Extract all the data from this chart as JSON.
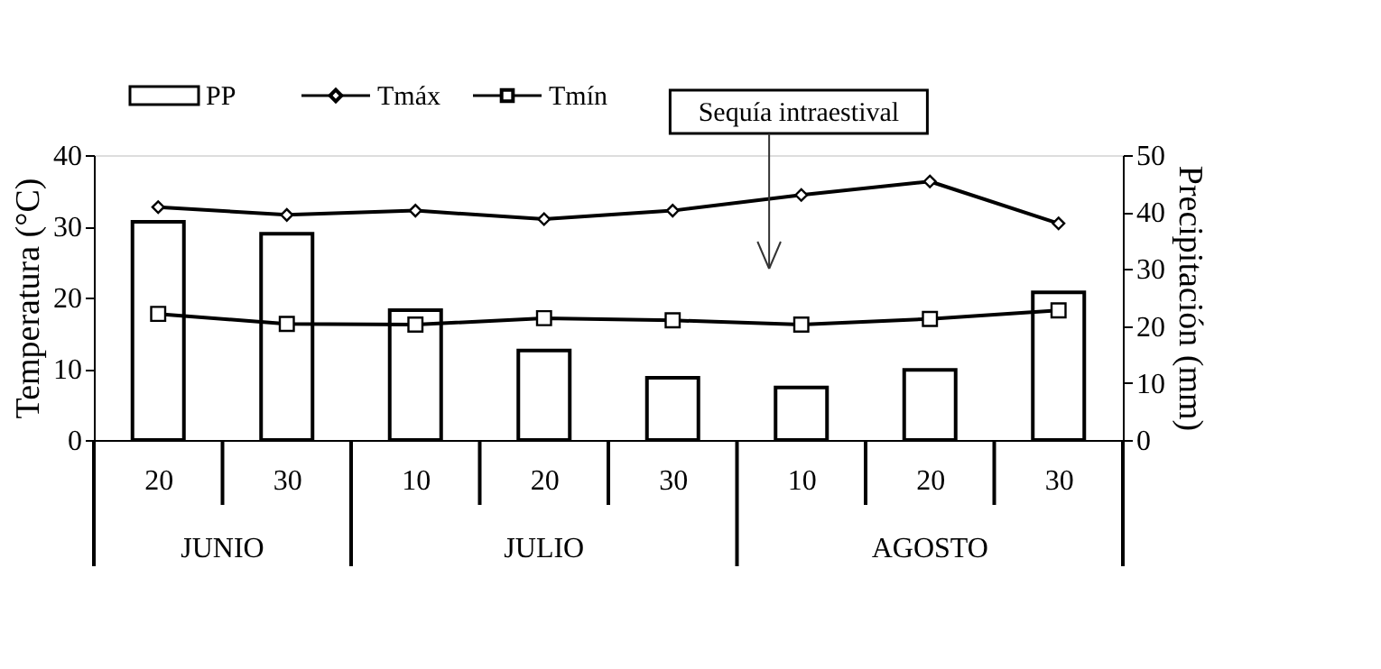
{
  "chart_data": {
    "type": "bar",
    "categories": [
      "20",
      "30",
      "10",
      "20",
      "30",
      "10",
      "20",
      "30"
    ],
    "ylabel": "Temperatura (°C)",
    "y2label": "Precipitación (mm)",
    "ylim": [
      0,
      40
    ],
    "yticks": [
      0,
      10,
      20,
      30,
      40
    ],
    "y2lim": [
      0,
      50
    ],
    "y2ticks": [
      0,
      10,
      20,
      30,
      40,
      50
    ],
    "series": [
      {
        "name": "PP",
        "axis": "y2",
        "color": "#000000",
        "values": [
          38.3,
          36.2,
          22.8,
          15.7,
          10.9,
          9.2,
          12.3,
          25.9
        ]
      },
      {
        "name": "Tmáx",
        "type": "line",
        "axis": "y",
        "color": "#000000",
        "marker": "diamond",
        "values": [
          32.7,
          31.6,
          32.2,
          31.0,
          32.2,
          34.4,
          36.3,
          30.4
        ]
      },
      {
        "name": "Tmín",
        "type": "line",
        "axis": "y",
        "color": "#000000",
        "marker": "square",
        "values": [
          17.7,
          16.3,
          16.2,
          17.1,
          16.8,
          16.2,
          17.0,
          18.2
        ]
      }
    ],
    "annotations": [
      "JUNIO",
      "JULIO",
      "AGOSTO",
      "Sequía intraestival"
    ],
    "legend": "top left",
    "grid": false
  }
}
